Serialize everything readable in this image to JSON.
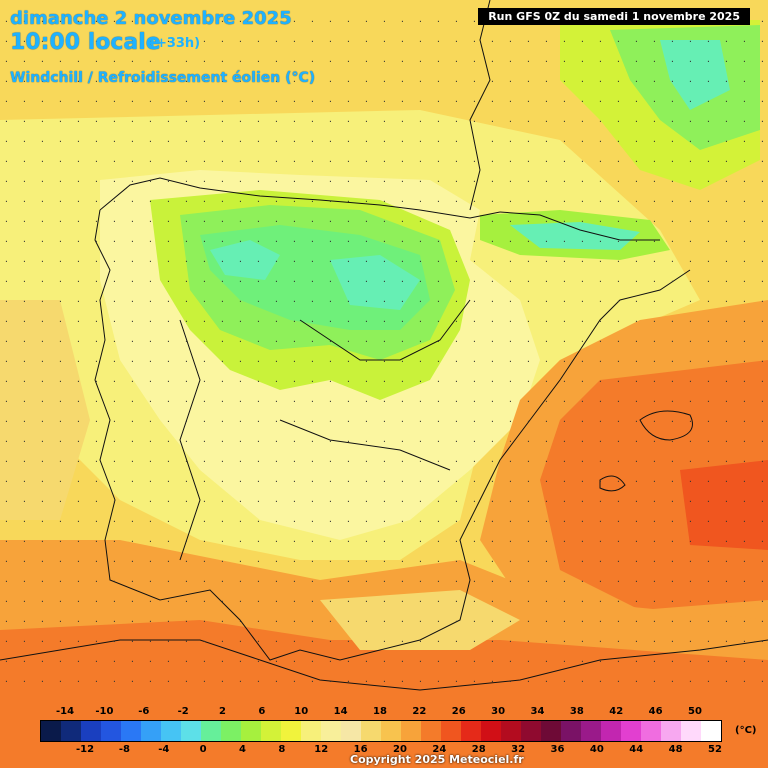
{
  "header": {
    "date": "dimanche 2 novembre 2025",
    "time": "10:00 locale",
    "offset": "(+33h)",
    "parameter": "Windchill / Refroidissement éolien (°C)",
    "run": "Run GFS 0Z du samedi 1 novembre 2025"
  },
  "legend": {
    "top_labels": [
      "-14",
      "-10",
      "-6",
      "-2",
      "2",
      "6",
      "10",
      "14",
      "18",
      "22",
      "26",
      "30",
      "34",
      "38",
      "42",
      "46",
      "50"
    ],
    "bottom_labels": [
      "-12",
      "-8",
      "-4",
      "0",
      "4",
      "8",
      "12",
      "16",
      "20",
      "24",
      "28",
      "32",
      "36",
      "40",
      "44",
      "48",
      "52"
    ],
    "unit": "(°C)",
    "colors": [
      "#0a1a4a",
      "#102a7a",
      "#1a3fbf",
      "#2356e0",
      "#2a78f5",
      "#35a0f7",
      "#46c4f4",
      "#5de0e8",
      "#66ef9a",
      "#7cf064",
      "#a6f03e",
      "#d3f238",
      "#f1f33c",
      "#f7f07a",
      "#f8ef9a",
      "#f6e7a6",
      "#f6d96e",
      "#f8c34e",
      "#f7a33a",
      "#f47b2a",
      "#f0561f",
      "#e52a19",
      "#d10f16",
      "#b30c1f",
      "#8f0a2f",
      "#6e0a36",
      "#7a1266",
      "#9a1a8a",
      "#c226b0",
      "#e23fd0",
      "#f06de0",
      "#f7a8f0",
      "#ffd9fb",
      "#ffffff"
    ],
    "value_range": [
      -14,
      52
    ]
  },
  "copyright": "Copyright 2025 Meteociel.fr"
}
